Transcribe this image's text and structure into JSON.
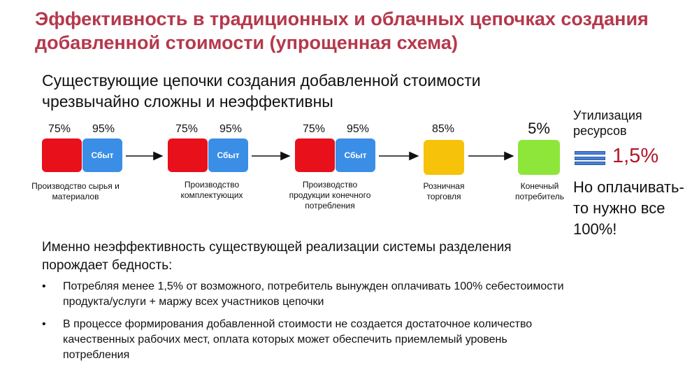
{
  "title": "Эффективность в традиционных и облачных цепочках создания добавленной стоимости (упрощенная схема)",
  "subtitle": "Существующие цепочки создания добавленной стоимости чрезвычайно сложны и неэффективны",
  "chain": [
    {
      "pct_left": "75%",
      "pct_right": "95%",
      "sales_label": "Сбыт",
      "label": "Производство сырья и материалов",
      "color": "#e8101a"
    },
    {
      "pct_left": "75%",
      "pct_right": "95%",
      "sales_label": "Сбыт",
      "label": "Производство комплектующих",
      "color": "#e8101a"
    },
    {
      "pct_left": "75%",
      "pct_right": "95%",
      "sales_label": "Сбыт",
      "label": "Производство продукции конечного потребления",
      "color": "#e8101a"
    },
    {
      "pct": "85%",
      "label": "Розничная торговля",
      "color": "#f7c20a"
    },
    {
      "pct": "5%",
      "label": "Конечный потребитель",
      "color": "#8ee63a"
    }
  ],
  "utilization": {
    "label": "Утилизация ресурсов",
    "value": "1,5%",
    "icon": "stacked-bars-icon",
    "note": "Но оплачивать-то нужно все 100%!"
  },
  "section_heading": "Именно неэффективность существующей реализации системы разделения порождает бедность:",
  "bullets": [
    "Потребляя менее 1,5% от возможного, потребитель вынужден оплачивать 100% себестоимости продукта/услуги + маржу всех участников цепочки",
    "В процессе формирования добавленной стоимости не создается достаточное количество качественных рабочих мест, оплата которых может обеспечить приемлемый уровень потребления"
  ],
  "bullet_symbol": "•",
  "colors": {
    "title": "#b5384c",
    "accent": "#b0182a",
    "sales": "#3a8ee6"
  }
}
